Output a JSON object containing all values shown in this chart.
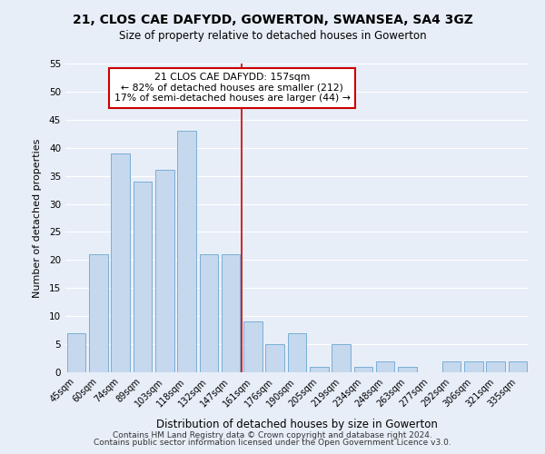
{
  "title": "21, CLOS CAE DAFYDD, GOWERTON, SWANSEA, SA4 3GZ",
  "subtitle": "Size of property relative to detached houses in Gowerton",
  "xlabel": "Distribution of detached houses by size in Gowerton",
  "ylabel": "Number of detached properties",
  "bar_labels": [
    "45sqm",
    "60sqm",
    "74sqm",
    "89sqm",
    "103sqm",
    "118sqm",
    "132sqm",
    "147sqm",
    "161sqm",
    "176sqm",
    "190sqm",
    "205sqm",
    "219sqm",
    "234sqm",
    "248sqm",
    "263sqm",
    "277sqm",
    "292sqm",
    "306sqm",
    "321sqm",
    "335sqm"
  ],
  "bar_values": [
    7,
    21,
    39,
    34,
    36,
    43,
    21,
    21,
    9,
    5,
    7,
    1,
    5,
    1,
    2,
    1,
    0,
    2,
    2,
    2,
    2
  ],
  "bar_color": "#c5d8ee",
  "bar_edge_color": "#7aafd4",
  "ylim": [
    0,
    55
  ],
  "yticks": [
    0,
    5,
    10,
    15,
    20,
    25,
    30,
    35,
    40,
    45,
    50,
    55
  ],
  "vline_color": "#cc0000",
  "annotation_title": "21 CLOS CAE DAFYDD: 157sqm",
  "annotation_line1": "← 82% of detached houses are smaller (212)",
  "annotation_line2": "17% of semi-detached houses are larger (44) →",
  "annotation_box_color": "#ffffff",
  "annotation_border_color": "#cc0000",
  "footer1": "Contains HM Land Registry data © Crown copyright and database right 2024.",
  "footer2": "Contains public sector information licensed under the Open Government Licence v3.0.",
  "background_color": "#e8eef8",
  "grid_color": "#ffffff"
}
